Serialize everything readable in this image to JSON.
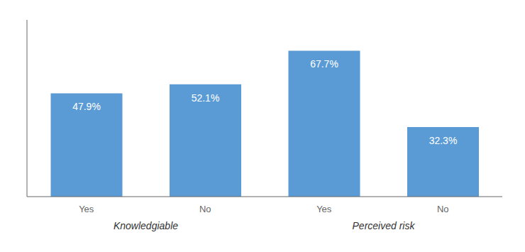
{
  "chart_data": {
    "type": "bar",
    "categories": [
      "Yes",
      "No",
      "Yes",
      "No"
    ],
    "values": [
      47.9,
      52.1,
      67.7,
      32.3
    ],
    "value_labels": [
      "47.9%",
      "52.1%",
      "67.7%",
      "32.3%"
    ],
    "group_labels": [
      "Knowledgiable",
      "Perceived risk"
    ],
    "color": "#5B9BD5",
    "ylim": [
      0,
      82
    ],
    "data_labels": true,
    "tick_labels": "x",
    "grid": false
  }
}
